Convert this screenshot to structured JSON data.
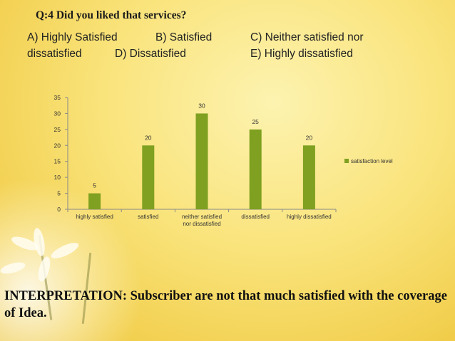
{
  "question": "Q:4 Did you liked that services?",
  "options": {
    "a": "A) Highly Satisfied",
    "b": "B) Satisfied",
    "c": "C) Neither satisfied nor",
    "c_cont": "dissatisfied",
    "d": "D) Dissatisfied",
    "e": "E) Highly dissatisfied"
  },
  "chart_data": {
    "type": "bar",
    "categories": [
      "highly satisfied",
      "satisfied",
      "neither satisfied nor dissatisfied",
      "dissatisfied",
      "highly dissatisfied"
    ],
    "category_lines": [
      [
        "highly satisfied"
      ],
      [
        "satisfied"
      ],
      [
        "neither satisfied",
        "nor dissatisfied"
      ],
      [
        "dissatisfied"
      ],
      [
        "highly dissatisfied"
      ]
    ],
    "series": [
      {
        "name": "satisfaction level",
        "values": [
          5,
          20,
          30,
          25,
          20
        ],
        "color": "#7fa020"
      }
    ],
    "ylim": [
      0,
      35
    ],
    "yticks": [
      0,
      5,
      10,
      15,
      20,
      25,
      30,
      35
    ],
    "legend_position": "right",
    "grid": false,
    "title": "",
    "xlabel": "",
    "ylabel": ""
  },
  "interpretation": {
    "label": "INTERPRETATION:",
    "text": " Subscriber are not that much satisfied with the coverage of Idea."
  }
}
